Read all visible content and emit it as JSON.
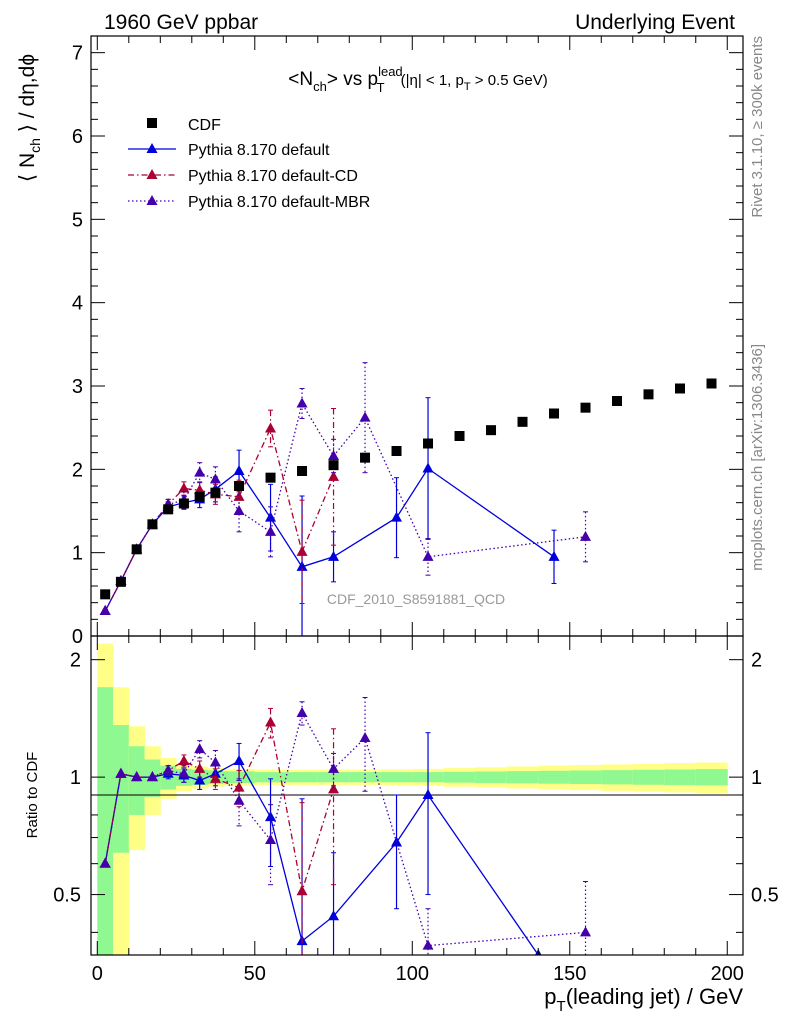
{
  "header": {
    "left": "1960 GeV ppbar",
    "right": "Underlying Event"
  },
  "side_labels": {
    "rivet": "Rivet 3.1.10, ≥ 300k events",
    "mcplots": "mcplots.cern.ch [arXiv:1306.3436]"
  },
  "chart_data": [
    {
      "type": "scatter",
      "title": {
        "prefix": "<N",
        "sub1": "ch",
        "mid": "> vs p",
        "sup": "lead",
        "sub2": "T",
        "cond1": "(|η| < 1, p",
        "cond_sub": "T",
        "cond2": " > 0.5 GeV)"
      },
      "ylabel": {
        "a": "⟨ N",
        "sub": "ch",
        "b": " ⟩ / dη,dϕ"
      },
      "analysis_tag": "CDF_2010_S8591881_QCD",
      "xlim": [
        -2,
        205
      ],
      "ylim": [
        0,
        7.2
      ],
      "yticks": [
        0,
        1,
        2,
        3,
        4,
        5,
        6,
        7
      ],
      "colors": {
        "cdf": "#000000",
        "default": "#0000dd",
        "cd": "#aa0033",
        "mbr": "#4400aa"
      },
      "legend": [
        {
          "key": "cdf",
          "label": "CDF"
        },
        {
          "key": "default",
          "label": "Pythia 8.170 default"
        },
        {
          "key": "cd",
          "label": "Pythia 8.170 default-CD"
        },
        {
          "key": "mbr",
          "label": "Pythia 8.170 default-MBR"
        }
      ],
      "series": [
        {
          "key": "cdf",
          "name": "CDF",
          "points": [
            [
              2.5,
              0.5
            ],
            [
              7.5,
              0.65
            ],
            [
              12.5,
              1.04
            ],
            [
              17.5,
              1.34
            ],
            [
              22.5,
              1.52
            ],
            [
              27.5,
              1.59
            ],
            [
              32.5,
              1.67
            ],
            [
              37.5,
              1.72
            ],
            [
              45,
              1.8
            ],
            [
              55,
              1.9
            ],
            [
              65,
              1.98
            ],
            [
              75,
              2.05
            ],
            [
              85,
              2.14
            ],
            [
              95,
              2.22
            ],
            [
              105,
              2.31
            ],
            [
              115,
              2.4
            ],
            [
              125,
              2.47
            ],
            [
              135,
              2.57
            ],
            [
              145,
              2.67
            ],
            [
              155,
              2.74
            ],
            [
              165,
              2.82
            ],
            [
              175,
              2.9
            ],
            [
              185,
              2.97
            ],
            [
              195,
              3.03
            ]
          ]
        },
        {
          "key": "default",
          "name": "Pythia 8.170 default",
          "points": [
            [
              2.5,
              0.3,
              0.02
            ],
            [
              7.5,
              0.66,
              0.03
            ],
            [
              12.5,
              1.04,
              0.04
            ],
            [
              17.5,
              1.34,
              0.04
            ],
            [
              22.5,
              1.55,
              0.06
            ],
            [
              27.5,
              1.6,
              0.08
            ],
            [
              32.5,
              1.64,
              0.1
            ],
            [
              37.5,
              1.76,
              0.15
            ],
            [
              45,
              1.98,
              0.25
            ],
            [
              55,
              1.42,
              0.4
            ],
            [
              65,
              0.83,
              0.85
            ],
            [
              75,
              0.95,
              0.3
            ],
            [
              95,
              1.42,
              0.48
            ],
            [
              105,
              2.01,
              0.85
            ],
            [
              145,
              0.95,
              0.32
            ]
          ]
        },
        {
          "key": "cd",
          "name": "Pythia 8.170 default-CD",
          "points": [
            [
              2.5,
              0.3,
              0.02
            ],
            [
              7.5,
              0.66,
              0.03
            ],
            [
              12.5,
              1.04,
              0.04
            ],
            [
              17.5,
              1.34,
              0.04
            ],
            [
              22.5,
              1.58,
              0.06
            ],
            [
              27.5,
              1.77,
              0.08
            ],
            [
              32.5,
              1.75,
              0.1
            ],
            [
              37.5,
              1.7,
              0.12
            ],
            [
              45,
              1.67,
              0.2
            ],
            [
              55,
              2.49,
              0.22
            ],
            [
              65,
              1.01,
              0.62
            ],
            [
              75,
              1.91,
              0.82
            ]
          ]
        },
        {
          "key": "mbr",
          "name": "Pythia 8.170 default-MBR",
          "points": [
            [
              2.5,
              0.3,
              0.02
            ],
            [
              7.5,
              0.66,
              0.03
            ],
            [
              12.5,
              1.04,
              0.04
            ],
            [
              17.5,
              1.34,
              0.04
            ],
            [
              22.5,
              1.58,
              0.06
            ],
            [
              27.5,
              1.63,
              0.1
            ],
            [
              32.5,
              1.96,
              0.12
            ],
            [
              37.5,
              1.88,
              0.15
            ],
            [
              45,
              1.5,
              0.25
            ],
            [
              55,
              1.25,
              0.3
            ],
            [
              65,
              2.79,
              0.18
            ],
            [
              75,
              2.16,
              0.2
            ],
            [
              85,
              2.62,
              0.66
            ],
            [
              105,
              0.95,
              0.22
            ],
            [
              155,
              1.19,
              0.3
            ]
          ]
        }
      ]
    },
    {
      "type": "scatter",
      "title": "Ratio to CDF",
      "ylabel": "Ratio to CDF",
      "xlabel": {
        "a": "p",
        "sub": "T",
        "b": "(leading jet) / GeV"
      },
      "xlim": [
        -2,
        205
      ],
      "ylim": [
        0.35,
        2.3
      ],
      "xticks": [
        0,
        50,
        100,
        150,
        200
      ],
      "yticks": [
        0.5,
        1,
        2
      ],
      "ytick_labels": [
        "0.5",
        "1",
        "2"
      ],
      "bands": {
        "edges": [
          0,
          5,
          10,
          15,
          20,
          25,
          30,
          35,
          40,
          50,
          60,
          70,
          80,
          90,
          100,
          110,
          120,
          130,
          140,
          150,
          160,
          170,
          180,
          190,
          200
        ],
        "green_half": [
          0.7,
          0.36,
          0.2,
          0.11,
          0.07,
          0.05,
          0.045,
          0.04,
          0.035,
          0.03,
          0.03,
          0.03,
          0.03,
          0.03,
          0.03,
          0.032,
          0.034,
          0.036,
          0.038,
          0.04,
          0.042,
          0.044,
          0.046,
          0.048
        ],
        "yellow_half": [
          1.2,
          0.7,
          0.35,
          0.2,
          0.12,
          0.08,
          0.065,
          0.055,
          0.05,
          0.045,
          0.045,
          0.045,
          0.045,
          0.048,
          0.05,
          0.055,
          0.06,
          0.065,
          0.07,
          0.074,
          0.078,
          0.082,
          0.086,
          0.09
        ],
        "green": "#90f890",
        "yellow": "#ffff88"
      },
      "series": [
        {
          "key": "default",
          "points": [
            [
              2.5,
              0.6,
              0.0
            ],
            [
              7.5,
              1.02,
              0.0
            ],
            [
              12.5,
              1.0,
              0.0
            ],
            [
              17.5,
              1.0,
              0.0
            ],
            [
              22.5,
              1.02,
              0.03
            ],
            [
              27.5,
              1.01,
              0.04
            ],
            [
              32.5,
              0.98,
              0.05
            ],
            [
              37.5,
              1.02,
              0.07
            ],
            [
              45,
              1.1,
              0.12
            ],
            [
              55,
              0.79,
              0.2
            ],
            [
              65,
              0.38,
              0.5
            ],
            [
              75,
              0.44,
              0.2
            ],
            [
              95,
              0.68,
              0.22
            ],
            [
              105,
              0.9,
              0.4
            ],
            [
              140,
              0.35,
              0.0
            ]
          ]
        },
        {
          "key": "cd",
          "points": [
            [
              2.5,
              0.6,
              0.0
            ],
            [
              7.5,
              1.02,
              0.0
            ],
            [
              12.5,
              1.0,
              0.0
            ],
            [
              17.5,
              1.0,
              0.0
            ],
            [
              22.5,
              1.04,
              0.03
            ],
            [
              27.5,
              1.1,
              0.04
            ],
            [
              32.5,
              1.05,
              0.05
            ],
            [
              37.5,
              0.99,
              0.06
            ],
            [
              45,
              0.94,
              0.1
            ],
            [
              55,
              1.38,
              0.12
            ],
            [
              65,
              0.51,
              0.35
            ],
            [
              75,
              0.93,
              0.4
            ]
          ]
        },
        {
          "key": "mbr",
          "points": [
            [
              2.5,
              0.6,
              0.0
            ],
            [
              7.5,
              1.02,
              0.0
            ],
            [
              12.5,
              1.0,
              0.0
            ],
            [
              17.5,
              1.0,
              0.0
            ],
            [
              22.5,
              1.04,
              0.03
            ],
            [
              27.5,
              1.02,
              0.05
            ],
            [
              32.5,
              1.18,
              0.06
            ],
            [
              37.5,
              1.09,
              0.08
            ],
            [
              45,
              0.87,
              0.12
            ],
            [
              55,
              0.69,
              0.16
            ],
            [
              65,
              1.46,
              0.1
            ],
            [
              75,
              1.05,
              0.1
            ],
            [
              85,
              1.26,
              0.34
            ],
            [
              105,
              0.37,
              0.09
            ],
            [
              155,
              0.4,
              0.14
            ]
          ]
        }
      ]
    }
  ]
}
